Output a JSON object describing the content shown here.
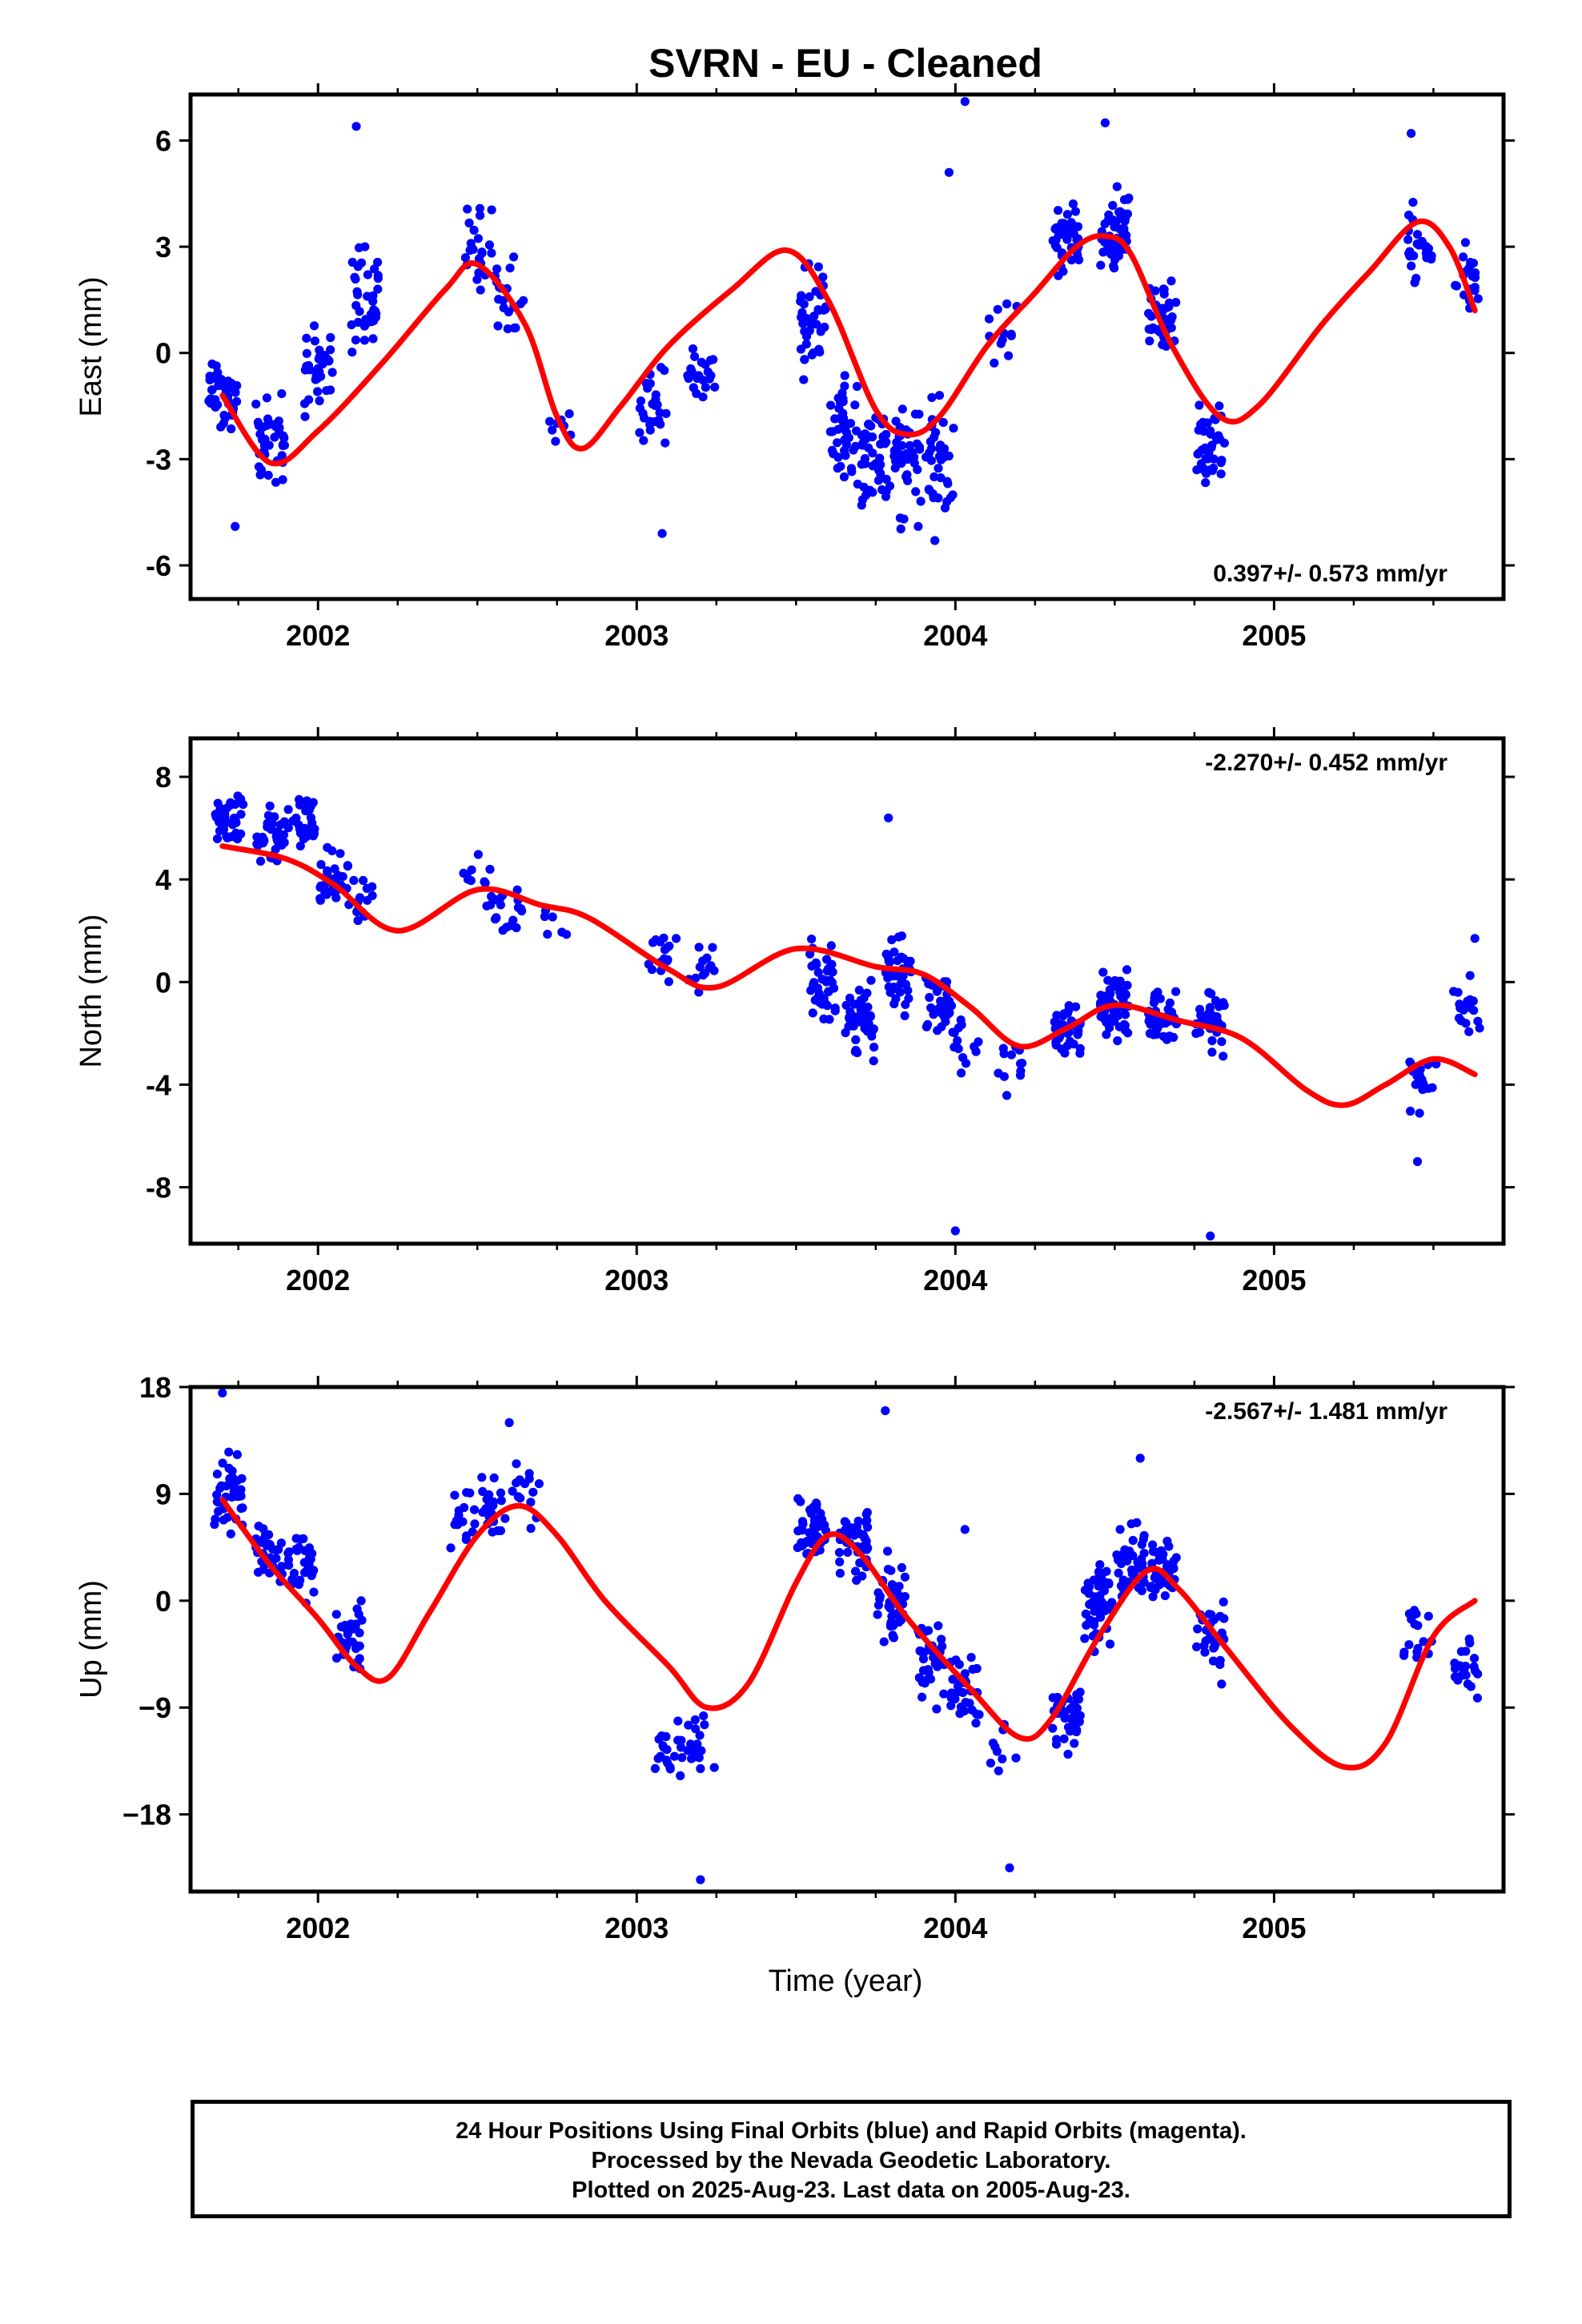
{
  "title": "SVRN  - EU - Cleaned",
  "xlabel": "Time (year)",
  "footer": {
    "line1": "24 Hour Positions Using Final Orbits (blue) and Rapid Orbits (magenta).",
    "line2": "Processed by the Nevada Geodetic Laboratory.",
    "line3": "Plotted on 2025-Aug-23. Last data on 2005-Aug-23."
  },
  "colors": {
    "points": "#0000ff",
    "fit": "#ff0000",
    "axes": "#000000"
  },
  "chart_data": [
    {
      "type": "scatter",
      "panel": "east",
      "ylabel": "East (mm)",
      "rate_label": "0.397+/- 0.573 mm/yr",
      "rate_position": "bottom-right",
      "xlim": [
        2001.6,
        2005.72
      ],
      "ylim": [
        -6.95,
        7.3
      ],
      "xticks": [
        2002,
        2003,
        2004,
        2005
      ],
      "yticks": [
        6,
        3,
        0,
        -3,
        -6
      ],
      "ytick_labels": [
        "6",
        "3",
        "0",
        "-3",
        "-6"
      ],
      "fit": {
        "x": [
          2001.7,
          2001.85,
          2002.0,
          2002.2,
          2002.4,
          2002.5,
          2002.65,
          2002.75,
          2002.83,
          2002.95,
          2003.1,
          2003.3,
          2003.47,
          2003.6,
          2003.75,
          2003.85,
          2003.95,
          2004.1,
          2004.25,
          2004.38,
          2004.47,
          2004.55,
          2004.68,
          2004.83,
          2004.95,
          2005.15,
          2005.3,
          2005.45,
          2005.55,
          2005.63
        ],
        "y": [
          -1.2,
          -3.1,
          -2.2,
          -0.3,
          1.8,
          2.5,
          0.8,
          -1.8,
          -2.7,
          -1.5,
          0.2,
          1.8,
          2.9,
          1.5,
          -1.6,
          -2.3,
          -1.8,
          0.2,
          1.7,
          3.0,
          3.3,
          2.8,
          0.2,
          -1.8,
          -1.5,
          0.8,
          2.3,
          3.7,
          3.0,
          1.2
        ]
      },
      "series": [
        {
          "x": [
            2001.7,
            2001.85,
            2002.0,
            2002.15,
            2002.5,
            2002.6,
            2002.75,
            2003.05,
            2003.2,
            2003.55,
            2003.65,
            2003.75,
            2003.85,
            2003.95,
            2004.15,
            2004.35,
            2004.5,
            2004.65,
            2004.8,
            2005.45,
            2005.6
          ],
          "y": [
            -1.2,
            -2.5,
            -0.5,
            1.5,
            3.0,
            1.5,
            -2.0,
            -1.5,
            -0.5,
            1.2,
            -2.0,
            -3.0,
            -3.0,
            -3.0,
            0.5,
            3.3,
            3.5,
            1.0,
            -2.5,
            3.0,
            2.2
          ],
          "spread": [
            1.8,
            1.8,
            1.9,
            2.2,
            1.8,
            1.5,
            1.0,
            2.0,
            1.0,
            2.2,
            2.5,
            2.5,
            2.5,
            2.8,
            1.5,
            1.5,
            1.8,
            1.5,
            1.5,
            1.5,
            1.2
          ],
          "count": [
            40,
            36,
            34,
            36,
            22,
            20,
            8,
            26,
            22,
            40,
            42,
            42,
            44,
            36,
            12,
            40,
            52,
            36,
            40,
            24,
            20
          ]
        }
      ],
      "outliers": {
        "x": [
          2001.74,
          2002.12,
          2003.08,
          2003.98,
          2004.03,
          2004.47,
          2005.43
        ],
        "y": [
          -4.9,
          6.4,
          -5.1,
          5.1,
          7.1,
          6.5,
          6.2
        ]
      }
    },
    {
      "type": "scatter",
      "panel": "north",
      "ylabel": "North (mm)",
      "rate_label": "-2.270+/- 0.452 mm/yr",
      "rate_position": "top-right",
      "xlim": [
        2001.6,
        2005.72
      ],
      "ylim": [
        -10.2,
        9.5
      ],
      "xticks": [
        2002,
        2003,
        2004,
        2005
      ],
      "yticks": [
        8,
        4,
        0,
        -4,
        -8
      ],
      "ytick_labels": [
        "8",
        "4",
        "0",
        "-4",
        "-8"
      ],
      "fit": {
        "x": [
          2001.7,
          2001.9,
          2002.05,
          2002.25,
          2002.5,
          2002.7,
          2002.85,
          2003.1,
          2003.25,
          2003.5,
          2003.75,
          2003.9,
          2004.05,
          2004.2,
          2004.35,
          2004.5,
          2004.7,
          2004.9,
          2005.1,
          2005.22,
          2005.35,
          2005.5,
          2005.63
        ],
        "y": [
          5.3,
          4.8,
          3.8,
          2.0,
          3.6,
          3.0,
          2.5,
          0.5,
          -0.2,
          1.3,
          0.6,
          0.3,
          -1.0,
          -2.5,
          -1.8,
          -0.9,
          -1.5,
          -2.2,
          -4.2,
          -4.8,
          -4.0,
          -3.0,
          -3.6
        ]
      },
      "series": [
        {
          "x": [
            2001.72,
            2001.85,
            2001.95,
            2002.05,
            2002.13,
            2002.5,
            2002.6,
            2002.75,
            2003.08,
            2003.2,
            2003.58,
            2003.7,
            2003.82,
            2003.95,
            2004.03,
            2004.17,
            2004.35,
            2004.5,
            2004.65,
            2004.8,
            2005.47,
            2005.6
          ],
          "y": [
            6.2,
            5.6,
            6.2,
            4.0,
            3.2,
            4.0,
            3.0,
            2.0,
            1.0,
            0.5,
            0.0,
            -1.5,
            0.3,
            -0.8,
            -2.5,
            -3.0,
            -1.8,
            -0.8,
            -1.5,
            -1.5,
            -3.8,
            -1.0
          ],
          "spread": [
            1.5,
            1.5,
            1.8,
            1.5,
            1.2,
            1.5,
            1.5,
            1.5,
            1.5,
            1.2,
            1.8,
            1.8,
            1.8,
            1.8,
            1.8,
            1.5,
            1.5,
            1.8,
            1.5,
            1.5,
            1.5,
            1.5
          ],
          "count": [
            40,
            34,
            30,
            34,
            14,
            12,
            18,
            6,
            18,
            14,
            42,
            42,
            44,
            36,
            14,
            12,
            40,
            52,
            38,
            42,
            18,
            18
          ]
        }
      ],
      "outliers": {
        "x": [
          2003.79,
          2004.0,
          2004.8,
          2005.45,
          2005.63
        ],
        "y": [
          6.4,
          -9.7,
          -9.9,
          -7.0,
          1.7
        ]
      }
    },
    {
      "type": "scatter",
      "panel": "up",
      "ylabel": "Up (mm)",
      "rate_label": "-2.567+/- 1.481 mm/yr",
      "rate_position": "top-right",
      "xlim": [
        2001.6,
        2005.72
      ],
      "ylim": [
        -24.5,
        18.0
      ],
      "xticks": [
        2002,
        2003,
        2004,
        2005
      ],
      "yticks": [
        18,
        9,
        0,
        -9,
        -18
      ],
      "ytick_labels": [
        "18",
        "9",
        "0",
        "−9",
        "−18"
      ],
      "fit": {
        "x": [
          2001.7,
          2001.85,
          2002.0,
          2002.12,
          2002.22,
          2002.35,
          2002.5,
          2002.63,
          2002.75,
          2002.9,
          2003.1,
          2003.22,
          2003.35,
          2003.5,
          2003.6,
          2003.7,
          2003.85,
          2004.05,
          2004.2,
          2004.3,
          2004.45,
          2004.6,
          2004.7,
          2004.85,
          2005.05,
          2005.22,
          2005.35,
          2005.5,
          2005.63
        ],
        "y": [
          8.5,
          3.0,
          -1.5,
          -5.5,
          -6.5,
          -1.0,
          5.5,
          8.0,
          5.5,
          0.0,
          -5.5,
          -9.0,
          -7.0,
          1.5,
          5.5,
          4.0,
          -1.5,
          -7.5,
          -11.5,
          -10.0,
          -3.0,
          2.5,
          1.0,
          -4.0,
          -10.5,
          -14.0,
          -12.0,
          -3.0,
          0.0
        ]
      },
      "series": [
        {
          "x": [
            2001.72,
            2001.85,
            2001.95,
            2002.1,
            2002.45,
            2002.55,
            2002.65,
            2003.1,
            2003.2,
            2003.55,
            2003.68,
            2003.8,
            2003.92,
            2004.03,
            2004.15,
            2004.35,
            2004.45,
            2004.55,
            2004.65,
            2004.8,
            2005.45,
            2005.6
          ],
          "y": [
            9.0,
            4.0,
            3.0,
            -3.0,
            7.0,
            8.0,
            8.5,
            -13.0,
            -12.0,
            6.0,
            5.0,
            0.0,
            -5.0,
            -7.5,
            -12.0,
            -10.0,
            0.0,
            3.5,
            2.0,
            -3.0,
            -3.0,
            -6.0
          ],
          "spread": [
            4.0,
            4.0,
            4.0,
            4.5,
            4.5,
            4.0,
            4.0,
            4.5,
            4.5,
            4.0,
            4.5,
            5.0,
            5.0,
            5.0,
            4.5,
            4.5,
            5.0,
            4.5,
            4.0,
            4.5,
            4.5,
            4.5
          ],
          "count": [
            40,
            36,
            32,
            34,
            16,
            22,
            14,
            20,
            18,
            46,
            44,
            42,
            38,
            30,
            10,
            38,
            50,
            44,
            38,
            30,
            16,
            20
          ]
        }
      ],
      "outliers": {
        "x": [
          2001.7,
          2002.6,
          2003.2,
          2003.78,
          2004.03,
          2004.17,
          2004.58
        ],
        "y": [
          17.5,
          15.0,
          -23.5,
          16.0,
          6.0,
          -22.5,
          12.0
        ]
      }
    }
  ]
}
